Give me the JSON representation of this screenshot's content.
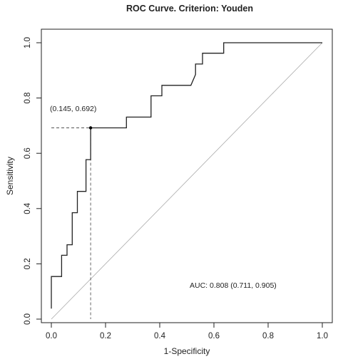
{
  "chart_data": {
    "type": "line",
    "title": "ROC Curve. Criterion: Youden",
    "xlabel": "1-Specificity",
    "ylabel": "Sensitivity",
    "xlim": [
      0,
      1
    ],
    "ylim": [
      0,
      1
    ],
    "x_ticks": [
      0,
      0.2,
      0.4,
      0.6,
      0.8,
      1.0
    ],
    "x_tick_labels": [
      "0.0",
      "0.2",
      "0.4",
      "0.6",
      "0.8",
      "1.0"
    ],
    "y_ticks": [
      0,
      0.2,
      0.4,
      0.6,
      0.8,
      1.0
    ],
    "y_tick_labels": [
      "0.0",
      "0.2",
      "0.4",
      "0.6",
      "0.8",
      "1.0"
    ],
    "grid": false,
    "legend": "none",
    "colors": {
      "curve": "#222222",
      "diagonal": "#aaaaaa",
      "guide": "#555555",
      "box": "#222222"
    },
    "series": [
      {
        "x": [
          0,
          0,
          0.038,
          0.038,
          0.058,
          0.058,
          0.077,
          0.077,
          0.096,
          0.096,
          0.128,
          0.128,
          0.145,
          0.145,
          0.277,
          0.277,
          0.368,
          0.368,
          0.408,
          0.408,
          0.515,
          0.532,
          0.532,
          0.558,
          0.558,
          0.636,
          0.636,
          1.0
        ],
        "y": [
          0.038,
          0.154,
          0.154,
          0.231,
          0.231,
          0.269,
          0.269,
          0.385,
          0.385,
          0.462,
          0.462,
          0.577,
          0.577,
          0.692,
          0.692,
          0.731,
          0.731,
          0.808,
          0.808,
          0.846,
          0.846,
          0.885,
          0.923,
          0.923,
          0.962,
          0.962,
          1.0,
          1.0
        ]
      }
    ],
    "reference_line": {
      "x": [
        0,
        1
      ],
      "y": [
        0,
        1
      ]
    },
    "optimal_point": {
      "x": 0.145,
      "y": 0.692,
      "label": "(0.145, 0.692)"
    },
    "annotations": {
      "auc": "AUC: 0.808 (0.711, 0.905)"
    }
  }
}
